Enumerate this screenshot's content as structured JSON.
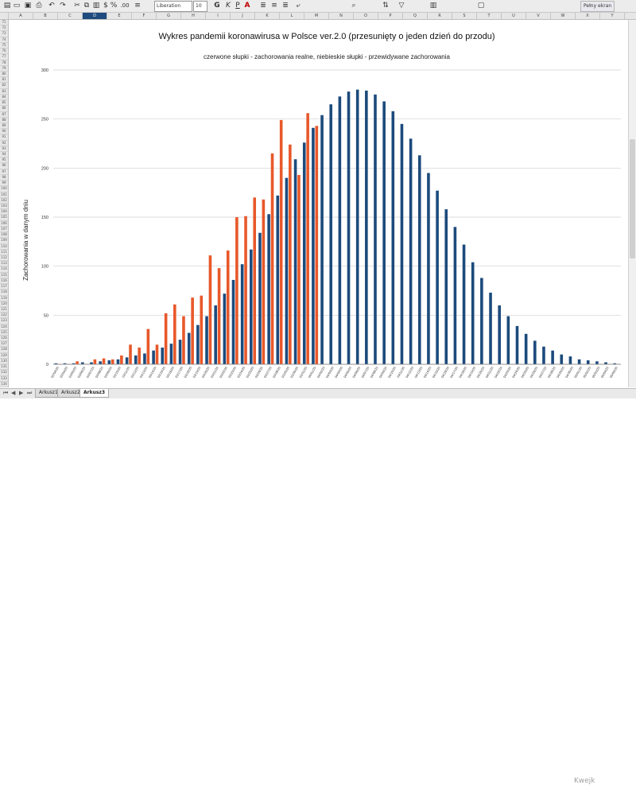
{
  "toolbar": {
    "font_name": "Liberation Sans",
    "font_size": "10",
    "bold": "G",
    "italic": "K",
    "underline": "P",
    "currency": "$",
    "percent": "%",
    "fullscreen_label": "Pełny ekran"
  },
  "columns": [
    "A",
    "B",
    "C",
    "D",
    "E",
    "F",
    "G",
    "H",
    "I",
    "J",
    "K",
    "L",
    "M",
    "N",
    "O",
    "P",
    "Q",
    "R",
    "S",
    "T",
    "U",
    "V",
    "W",
    "X",
    "Y"
  ],
  "active_column": "D",
  "rows": [
    "71",
    "72",
    "73",
    "74",
    "75",
    "76",
    "77",
    "78",
    "79",
    "80",
    "81",
    "82",
    "83",
    "84",
    "85",
    "86",
    "87",
    "88",
    "89",
    "90",
    "91",
    "92",
    "93",
    "94",
    "95",
    "96",
    "97",
    "98",
    "99",
    "100",
    "101",
    "102",
    "103",
    "104",
    "105",
    "106",
    "107",
    "108",
    "109",
    "110",
    "111",
    "112",
    "113",
    "114",
    "115",
    "116",
    "117",
    "118",
    "119",
    "120",
    "121",
    "122",
    "123",
    "124",
    "125",
    "126",
    "127",
    "128",
    "129",
    "130",
    "131",
    "132",
    "133",
    "134"
  ],
  "sheets": [
    "Arkusz1",
    "Arkusz2",
    "Arkusz3"
  ],
  "active_sheet": "Arkusz3",
  "watermark": "Kwejk",
  "chart_data": {
    "type": "bar",
    "title": "Wykres pandemii koronawirusa w Polsce ver.2.0 (przesunięty o jeden dzień do przodu)",
    "subtitle": "czerwone słupki - zachorowania realne, niebieskie słupki - przewidywane zachorowania",
    "ylabel": "Zachorowania w danym dniu",
    "xlabel": "",
    "ylim": [
      0,
      300
    ],
    "yticks": [
      0,
      50,
      100,
      150,
      200,
      250,
      300
    ],
    "categories": [
      "02/04/20",
      "03/04/20",
      "03/05/20",
      "03/06/20",
      "03/07/20",
      "03/08/20",
      "03/09/20",
      "03/10/20",
      "03/11/20",
      "03/12/20",
      "03/13/20",
      "03/14/20",
      "03/15/20",
      "03/16/20",
      "03/17/20",
      "03/18/20",
      "03/19/20",
      "03/20/20",
      "03/21/20",
      "03/22/20",
      "03/23/20",
      "03/24/20",
      "03/25/20",
      "03/26/20",
      "03/27/20",
      "03/28/20",
      "03/29/20",
      "03/30/20",
      "03/31/20",
      "04/01/20",
      "04/02/20",
      "04/03/20",
      "04/04/20",
      "04/05/20",
      "04/06/20",
      "04/07/20",
      "04/08/20",
      "04/09/20",
      "04/10/20",
      "04/11/20",
      "04/12/20",
      "04/13/20",
      "04/14/20",
      "04/15/20",
      "04/16/20",
      "04/17/20",
      "04/18/20",
      "04/19/20",
      "04/20/20",
      "04/21/20",
      "04/22/20",
      "04/23/20",
      "04/24/20",
      "04/25/20",
      "04/26/20",
      "04/27/20",
      "04/28/20",
      "04/29/20",
      "04/30/20",
      "05/01/20",
      "05/02/20",
      "05/03/20",
      "05/04/20",
      "05/05/20"
    ],
    "series": [
      {
        "name": "przewidywane zachorowania",
        "color": "#1c4a7c",
        "values": [
          1,
          1,
          1,
          2,
          2,
          3,
          4,
          5,
          7,
          9,
          11,
          14,
          17,
          21,
          25,
          32,
          40,
          49,
          60,
          72,
          86,
          102,
          117,
          134,
          153,
          172,
          190,
          209,
          226,
          241,
          254,
          265,
          273,
          278,
          280,
          279,
          275,
          268,
          258,
          245,
          230,
          213,
          195,
          177,
          158,
          140,
          122,
          104,
          88,
          73,
          60,
          49,
          39,
          31,
          24,
          18,
          14,
          10,
          8,
          5,
          4,
          3,
          2,
          1
        ]
      },
      {
        "name": "zachorowania realne",
        "color": "#e8582a",
        "values": [
          0,
          0,
          3,
          0,
          5,
          6,
          5,
          9,
          20,
          17,
          36,
          20,
          52,
          61,
          49,
          68,
          70,
          111,
          98,
          116,
          150,
          151,
          170,
          168,
          215,
          249,
          224,
          193,
          256,
          243,
          null,
          null,
          null,
          null,
          null,
          null,
          null,
          null,
          null,
          null,
          null,
          null,
          null,
          null,
          null,
          null,
          null,
          null,
          null,
          null,
          null,
          null,
          null,
          null,
          null,
          null,
          null,
          null,
          null,
          null,
          null,
          null,
          null,
          null
        ]
      }
    ]
  }
}
